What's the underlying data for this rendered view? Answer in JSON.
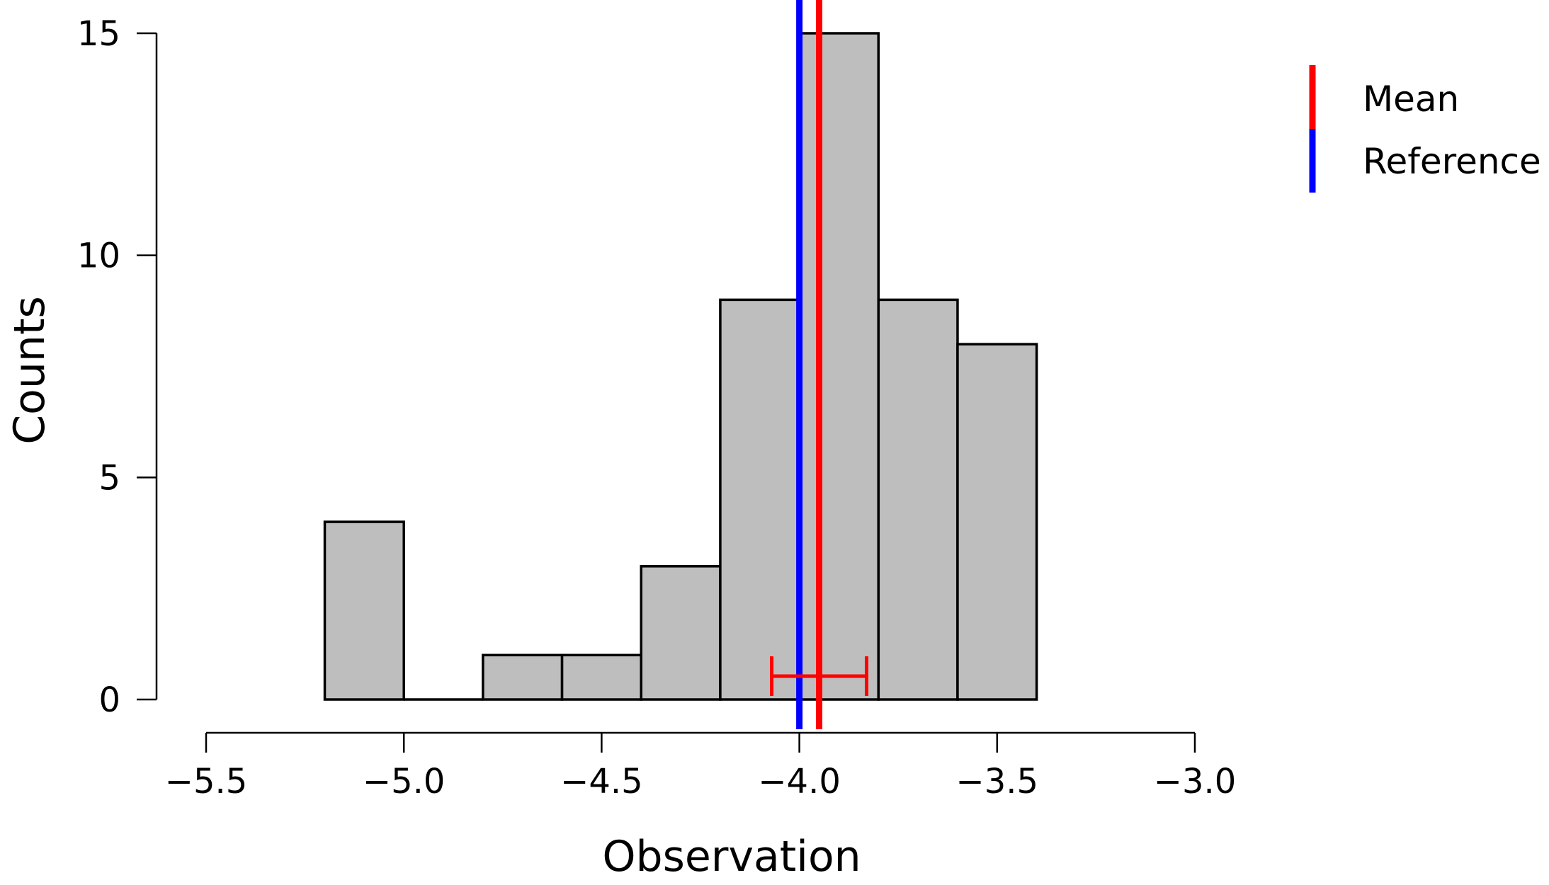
{
  "chart_data": {
    "type": "histogram",
    "bins": [
      {
        "x0": -5.2,
        "x1": -5.0,
        "count": 4
      },
      {
        "x0": -5.0,
        "x1": -4.8,
        "count": 0
      },
      {
        "x0": -4.8,
        "x1": -4.6,
        "count": 1
      },
      {
        "x0": -4.6,
        "x1": -4.4,
        "count": 1
      },
      {
        "x0": -4.4,
        "x1": -4.2,
        "count": 3
      },
      {
        "x0": -4.2,
        "x1": -4.0,
        "count": 9
      },
      {
        "x0": -4.0,
        "x1": -3.8,
        "count": 15
      },
      {
        "x0": -3.8,
        "x1": -3.6,
        "count": 9
      },
      {
        "x0": -3.6,
        "x1": -3.4,
        "count": 8
      }
    ],
    "xlabel": "Observation",
    "ylabel": "Counts",
    "xlim": [
      -5.5,
      -3.0
    ],
    "ylim": [
      0,
      15
    ],
    "xticks": [
      -5.5,
      -5.0,
      -4.5,
      -4.0,
      -3.5,
      -3.0
    ],
    "xtick_labels": [
      "−5.5",
      "−5.0",
      "−4.5",
      "−4.0",
      "−3.5",
      "−3.0"
    ],
    "yticks": [
      0,
      5,
      10,
      15
    ],
    "ytick_labels": [
      "0",
      "5",
      "10",
      "15"
    ],
    "mean": -3.95,
    "mean_error_interval": [
      -4.07,
      -3.83
    ],
    "reference": -4.0,
    "bar_color": "#bebebe",
    "mean_color": "#ff0000",
    "reference_color": "#0000ff",
    "grid": false,
    "legend_position": "top-right",
    "legend": [
      {
        "label": "Mean",
        "color": "#ff0000"
      },
      {
        "label": "Reference",
        "color": "#0000ff"
      }
    ]
  }
}
